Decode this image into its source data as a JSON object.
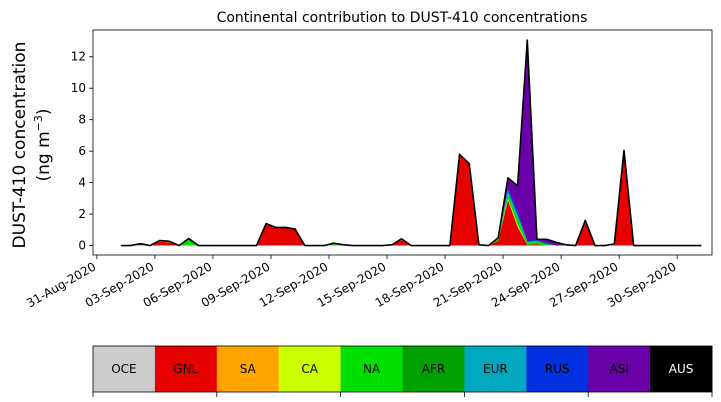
{
  "chart_data": {
    "type": "area",
    "title": "Continental contribution to DUST-410 concentrations",
    "ylabel_line1": "DUST-410 concentration",
    "ylabel_line2_prefix": "(ng m",
    "ylabel_line2_sup": "−3",
    "ylabel_line2_suffix": ")",
    "xlabel": "",
    "x_tick_labels": [
      "31-Aug-2020",
      "03-Sep-2020",
      "06-Sep-2020",
      "09-Sep-2020",
      "12-Sep-2020",
      "15-Sep-2020",
      "18-Sep-2020",
      "21-Sep-2020",
      "24-Sep-2020",
      "27-Sep-2020",
      "30-Sep-2020"
    ],
    "x_tick_days": [
      0,
      3,
      6,
      9,
      12,
      15,
      18,
      21,
      24,
      27,
      30
    ],
    "xlim_days": [
      -0.2,
      31.8
    ],
    "ylim": [
      -0.6,
      13.7
    ],
    "y_ticks": [
      0,
      2,
      4,
      6,
      8,
      10,
      12
    ],
    "x_days": [
      1.25,
      1.75,
      2.25,
      2.75,
      3.25,
      3.75,
      4.25,
      4.75,
      5.25,
      5.75,
      6.25,
      6.75,
      7.25,
      7.75,
      8.25,
      8.75,
      9.25,
      9.75,
      10.25,
      10.75,
      11.25,
      11.75,
      12.25,
      12.75,
      13.25,
      13.75,
      14.25,
      14.75,
      15.25,
      15.75,
      16.25,
      16.75,
      17.25,
      17.75,
      18.25,
      18.75,
      19.25,
      19.75,
      20.25,
      20.75,
      21.25,
      21.75,
      22.25,
      22.75,
      23.25,
      23.75,
      24.25,
      24.75,
      25.25,
      25.75,
      26.25,
      26.75,
      27.25,
      27.75,
      28.25,
      28.75,
      29.25,
      29.75,
      30.25,
      30.75,
      31.25
    ],
    "series": [
      {
        "name": "GNL",
        "color": "#e60000",
        "values": [
          0,
          0,
          0,
          0,
          0.25,
          0.2,
          0,
          0,
          0,
          0,
          0,
          0,
          0,
          0,
          0,
          1.4,
          1.15,
          1.15,
          1.05,
          0,
          0,
          0,
          0,
          0.05,
          0,
          0,
          0,
          0,
          0.05,
          0.35,
          0,
          0,
          0,
          0,
          0,
          5.8,
          5.2,
          0,
          0,
          0.3,
          2.9,
          1.2,
          0.05,
          0.1,
          0,
          0,
          0,
          0,
          1.6,
          0,
          0,
          0.05,
          5.9,
          0,
          0,
          0,
          0,
          0,
          0,
          0,
          0
        ]
      },
      {
        "name": "CA",
        "color": "#ccff00",
        "values": [
          0,
          0,
          0,
          0,
          0.02,
          0.02,
          0,
          0,
          0,
          0,
          0,
          0,
          0,
          0,
          0,
          0,
          0,
          0,
          0,
          0,
          0,
          0,
          0,
          0,
          0,
          0,
          0,
          0,
          0,
          0.03,
          0,
          0,
          0,
          0,
          0,
          0,
          0,
          0,
          0,
          0,
          0.1,
          0.15,
          0,
          0,
          0,
          0,
          0,
          0,
          0,
          0,
          0,
          0,
          0,
          0,
          0,
          0,
          0,
          0,
          0,
          0,
          0
        ]
      },
      {
        "name": "NA",
        "color": "#00e000",
        "values": [
          0,
          0,
          0.12,
          0,
          0.05,
          0.05,
          0,
          0.45,
          0,
          0,
          0,
          0,
          0,
          0,
          0,
          0,
          0,
          0,
          0,
          0,
          0,
          0,
          0.15,
          0,
          0,
          0,
          0,
          0,
          0,
          0.05,
          0,
          0,
          0,
          0,
          0,
          0,
          0,
          0.05,
          0,
          0.2,
          0.3,
          0.4,
          0.15,
          0.2,
          0.1,
          0,
          0,
          0,
          0,
          0,
          0,
          0.05,
          0.15,
          0,
          0,
          0,
          0,
          0,
          0,
          0,
          0
        ]
      },
      {
        "name": "EUR",
        "color": "#00a8c0",
        "values": [
          0,
          0,
          0,
          0,
          0,
          0,
          0,
          0,
          0,
          0,
          0,
          0,
          0,
          0,
          0,
          0,
          0,
          0,
          0,
          0,
          0,
          0,
          0,
          0,
          0,
          0,
          0,
          0,
          0,
          0,
          0,
          0,
          0,
          0,
          0,
          0,
          0,
          0,
          0,
          0,
          0.2,
          0.2,
          0.05,
          0,
          0,
          0,
          0,
          0,
          0,
          0,
          0,
          0,
          0,
          0,
          0,
          0,
          0,
          0,
          0,
          0,
          0
        ]
      },
      {
        "name": "RUS",
        "color": "#0030e0",
        "values": [
          0,
          0,
          0,
          0,
          0,
          0,
          0,
          0,
          0,
          0,
          0,
          0,
          0,
          0,
          0,
          0,
          0,
          0,
          0,
          0,
          0,
          0,
          0,
          0,
          0,
          0,
          0,
          0,
          0,
          0,
          0,
          0,
          0,
          0,
          0,
          0,
          0,
          0,
          0,
          0,
          0.2,
          0.25,
          0.1,
          0.05,
          0.1,
          0,
          0,
          0,
          0,
          0,
          0,
          0,
          0,
          0,
          0,
          0,
          0,
          0,
          0,
          0,
          0
        ]
      },
      {
        "name": "ASI",
        "color": "#6a00a8",
        "values": [
          0,
          0,
          0,
          0,
          0,
          0,
          0,
          0,
          0,
          0,
          0,
          0,
          0,
          0,
          0,
          0,
          0,
          0,
          0,
          0,
          0,
          0,
          0,
          0,
          0,
          0,
          0,
          0,
          0,
          0,
          0,
          0,
          0,
          0,
          0,
          0,
          0,
          0,
          0,
          0,
          0.6,
          1.6,
          12.7,
          0.05,
          0.2,
          0.2,
          0.05,
          0,
          0,
          0,
          0,
          0,
          0,
          0,
          0,
          0,
          0,
          0,
          0,
          0,
          0
        ]
      }
    ],
    "legend_entries": [
      {
        "label": "OCE",
        "color": "#cccccc",
        "text_color": "#000000"
      },
      {
        "label": "GNL",
        "color": "#e60000",
        "text_color": "#000000"
      },
      {
        "label": "SA",
        "color": "#ffa500",
        "text_color": "#000000"
      },
      {
        "label": "CA",
        "color": "#ccff00",
        "text_color": "#000000"
      },
      {
        "label": "NA",
        "color": "#00e000",
        "text_color": "#000000"
      },
      {
        "label": "AFR",
        "color": "#00a000",
        "text_color": "#000000"
      },
      {
        "label": "EUR",
        "color": "#00a8c0",
        "text_color": "#000000"
      },
      {
        "label": "RUS",
        "color": "#0030e0",
        "text_color": "#000000"
      },
      {
        "label": "ASI",
        "color": "#6a00a8",
        "text_color": "#000000"
      },
      {
        "label": "AUS",
        "color": "#000000",
        "text_color": "#ffffff"
      }
    ],
    "legend_placement": "bottom colorbar",
    "grid": false
  }
}
